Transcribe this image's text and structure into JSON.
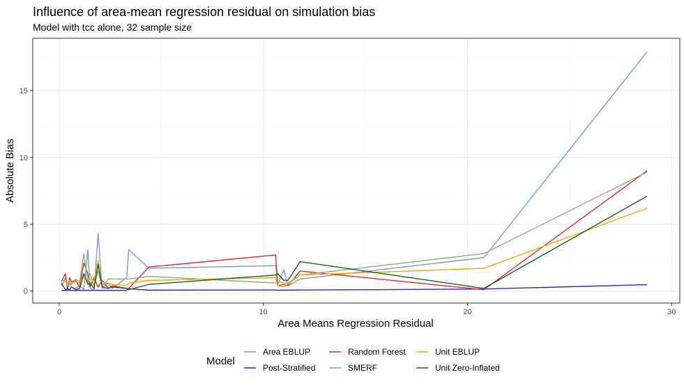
{
  "chart_data": {
    "type": "line",
    "title": "Influence of area-mean regression residual on simulation bias",
    "subtitle": "Model with tcc alone, 32 sample size",
    "xlabel": "Area Means Regression Residual",
    "ylabel": "Absolute Bias",
    "xlim": [
      -1.3,
      30.4
    ],
    "ylim": [
      -0.9,
      18.9
    ],
    "x_ticks": [
      0,
      10,
      20,
      30
    ],
    "y_ticks": [
      0,
      5,
      10,
      15
    ],
    "grid": true,
    "legend": {
      "title": "Model",
      "position": "bottom",
      "entries": [
        "Area EBLUP",
        "Post-Stratified",
        "Random Forest",
        "SMERF",
        "Unit EBLUP",
        "Unit Zero-Inflated"
      ]
    },
    "x": [
      0.1,
      0.3,
      0.4,
      0.5,
      0.6,
      0.8,
      1.0,
      1.2,
      1.4,
      1.5,
      1.7,
      1.9,
      2.1,
      2.4,
      2.6,
      3.3,
      3.4,
      4.4,
      10.6,
      10.7,
      11.0,
      11.2,
      11.8,
      20.8,
      28.8
    ],
    "series": [
      {
        "name": "Area EBLUP",
        "color": "#7b9bcf",
        "values": [
          0.4,
          1.0,
          0.2,
          0.6,
          0.3,
          0.2,
          0.4,
          0.1,
          3.1,
          0.2,
          0.1,
          4.3,
          0.2,
          0.6,
          0.2,
          1.0,
          3.1,
          1.7,
          1.9,
          0.5,
          1.6,
          0.4,
          0.9,
          2.5,
          17.9
        ]
      },
      {
        "name": "Post-Stratified",
        "color": "#3f1fbf",
        "values": [
          0.05,
          0.05,
          0.04,
          0.05,
          0.05,
          0.05,
          0.06,
          0.05,
          0.06,
          0.05,
          0.05,
          0.06,
          0.05,
          0.05,
          0.05,
          0.06,
          0.17,
          0.07,
          0.08,
          0.06,
          0.07,
          0.07,
          0.08,
          0.15,
          0.48
        ]
      },
      {
        "name": "Random Forest",
        "color": "#d92b2b",
        "values": [
          0.7,
          1.3,
          0.1,
          1.0,
          0.7,
          0.8,
          0.3,
          2.1,
          1.3,
          0.3,
          1.0,
          0.3,
          0.8,
          0.2,
          0.4,
          0.2,
          0.2,
          1.8,
          2.7,
          0.4,
          0.5,
          0.4,
          1.5,
          0.1,
          9.0
        ]
      },
      {
        "name": "SMERF",
        "color": "#8fad7a",
        "values": [
          0.8,
          0.7,
          0.4,
          0.6,
          0.5,
          0.9,
          0.7,
          2.8,
          0.6,
          1.3,
          0.4,
          1.5,
          0.3,
          0.9,
          0.9,
          0.9,
          0.9,
          1.1,
          0.6,
          0.7,
          0.6,
          0.6,
          1.2,
          2.8,
          8.9
        ]
      },
      {
        "name": "Unit EBLUP",
        "color": "#f5a800",
        "values": [
          0.8,
          0.8,
          0.6,
          0.7,
          0.6,
          0.7,
          0.6,
          1.1,
          0.6,
          0.9,
          0.8,
          2.3,
          0.5,
          0.6,
          0.5,
          0.4,
          0.6,
          0.8,
          1.0,
          0.4,
          0.3,
          0.5,
          1.2,
          1.7,
          6.2
        ]
      },
      {
        "name": "Unit Zero-Inflated",
        "color": "#1a5e2a",
        "values": [
          0.6,
          0.1,
          0.2,
          0.1,
          0.3,
          0.1,
          0.2,
          1.3,
          0.5,
          0.6,
          0.2,
          2.0,
          0.3,
          0.2,
          0.3,
          0.2,
          0.1,
          0.5,
          1.2,
          1.3,
          0.8,
          0.8,
          2.2,
          0.2,
          7.1
        ]
      }
    ]
  }
}
